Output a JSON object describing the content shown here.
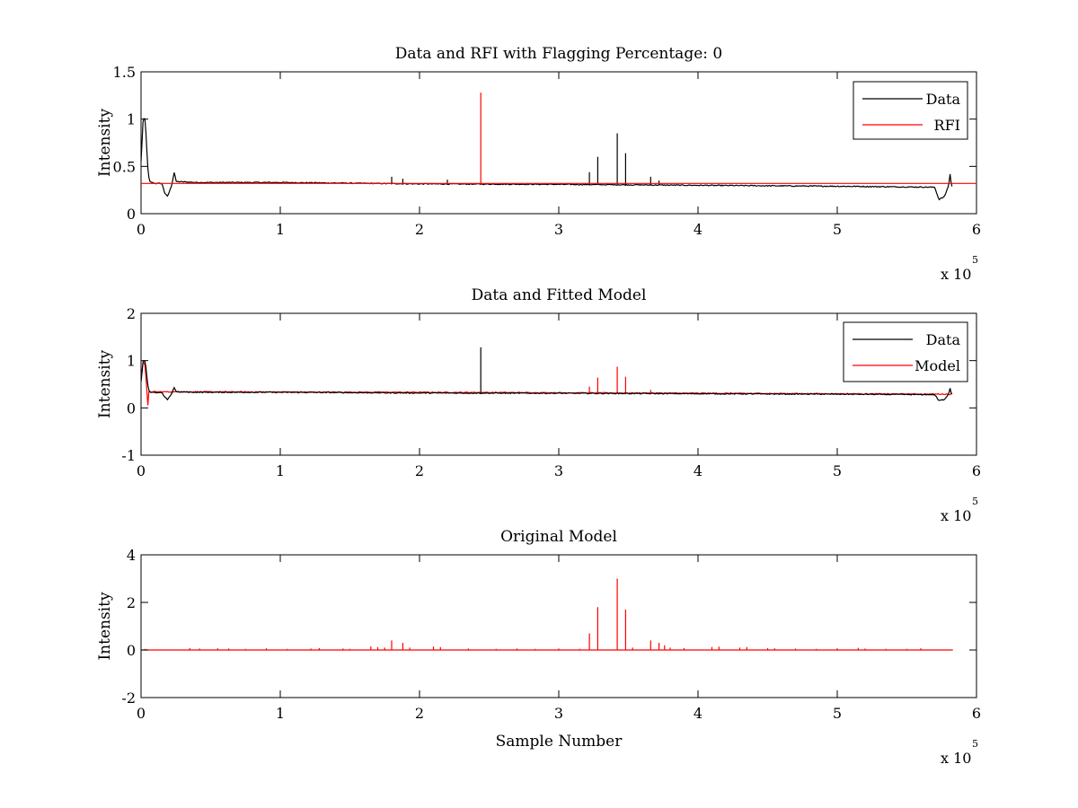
{
  "figure": {
    "background": "#ffffff",
    "line_colors": {
      "black": "#000000",
      "red": "#ff0000"
    }
  },
  "chart_data": [
    {
      "type": "line",
      "title": "Data and RFI with Flagging Percentage: 0",
      "xlabel": "",
      "ylabel": "Intensity",
      "xlim": [
        0,
        600000
      ],
      "ylim": [
        0,
        1.5
      ],
      "xticks": [
        0,
        1,
        2,
        3,
        4,
        5,
        6
      ],
      "xtick_scale": 100000,
      "x_exponent_label": {
        "prefix": "x 10",
        "power": "5"
      },
      "yticks": [
        "0",
        "0.5",
        "1",
        "1.5"
      ],
      "ytick_values": [
        0,
        0.5,
        1,
        1.5
      ],
      "grid": false,
      "legend": {
        "position": "top-right",
        "entries": [
          "Data",
          "RFI"
        ]
      },
      "series": [
        {
          "name": "Data",
          "color": "#000000",
          "kind": "baseline",
          "profile": [
            [
              0,
              0.55
            ],
            [
              1500,
              1.0
            ],
            [
              3000,
              1.0
            ],
            [
              5000,
              0.45
            ],
            [
              6000,
              0.34
            ],
            [
              10000,
              0.32
            ],
            [
              15000,
              0.32
            ],
            [
              17000,
              0.22
            ],
            [
              19000,
              0.18
            ],
            [
              22000,
              0.3
            ],
            [
              24000,
              0.45
            ],
            [
              25000,
              0.34
            ],
            [
              40000,
              0.33
            ],
            [
              100000,
              0.33
            ],
            [
              200000,
              0.315
            ],
            [
              300000,
              0.31
            ],
            [
              400000,
              0.3
            ],
            [
              500000,
              0.29
            ],
            [
              570000,
              0.28
            ],
            [
              573000,
              0.15
            ],
            [
              577000,
              0.18
            ],
            [
              580000,
              0.3
            ],
            [
              581000,
              0.42
            ],
            [
              582000,
              0.3
            ],
            [
              583000,
              0.28
            ]
          ],
          "spikes": [
            [
              180000,
              0.39
            ],
            [
              188000,
              0.37
            ],
            [
              220000,
              0.36
            ],
            [
              322000,
              0.44
            ],
            [
              328000,
              0.6
            ],
            [
              342000,
              0.85
            ],
            [
              348000,
              0.64
            ],
            [
              366000,
              0.39
            ],
            [
              372000,
              0.35
            ]
          ]
        },
        {
          "name": "RFI",
          "color": "#ff0000",
          "kind": "spikes",
          "baseline": 0.32,
          "spikes": [
            [
              244000,
              1.28
            ]
          ]
        }
      ]
    },
    {
      "type": "line",
      "title": "Data and Fitted Model",
      "xlabel": "",
      "ylabel": "Intensity",
      "xlim": [
        0,
        600000
      ],
      "ylim": [
        -1,
        2
      ],
      "xticks": [
        0,
        1,
        2,
        3,
        4,
        5,
        6
      ],
      "xtick_scale": 100000,
      "x_exponent_label": {
        "prefix": "x 10",
        "power": "5"
      },
      "yticks": [
        "-1",
        "0",
        "1",
        "2"
      ],
      "ytick_values": [
        -1,
        0,
        1,
        2
      ],
      "grid": false,
      "legend": {
        "position": "top-right",
        "entries": [
          "Data",
          "Model"
        ]
      },
      "series": [
        {
          "name": "Model",
          "color": "#ff0000",
          "kind": "baseline",
          "profile": [
            [
              0,
              0.6
            ],
            [
              1500,
              1.0
            ],
            [
              3000,
              0.9
            ],
            [
              5000,
              0.0
            ],
            [
              5500,
              0.34
            ],
            [
              40000,
              0.34
            ],
            [
              200000,
              0.33
            ],
            [
              400000,
              0.31
            ],
            [
              583000,
              0.29
            ]
          ],
          "spikes": [
            [
              322000,
              0.45
            ],
            [
              328000,
              0.64
            ],
            [
              342000,
              0.87
            ],
            [
              348000,
              0.66
            ],
            [
              366000,
              0.38
            ]
          ]
        },
        {
          "name": "Data",
          "color": "#000000",
          "kind": "baseline",
          "profile": [
            [
              0,
              0.55
            ],
            [
              1500,
              1.0
            ],
            [
              3000,
              1.0
            ],
            [
              5000,
              0.45
            ],
            [
              6000,
              0.34
            ],
            [
              10000,
              0.32
            ],
            [
              15000,
              0.32
            ],
            [
              17000,
              0.22
            ],
            [
              19000,
              0.18
            ],
            [
              22000,
              0.3
            ],
            [
              24000,
              0.45
            ],
            [
              25000,
              0.34
            ],
            [
              40000,
              0.33
            ],
            [
              100000,
              0.33
            ],
            [
              200000,
              0.315
            ],
            [
              300000,
              0.31
            ],
            [
              400000,
              0.3
            ],
            [
              500000,
              0.29
            ],
            [
              570000,
              0.28
            ],
            [
              573000,
              0.15
            ],
            [
              577000,
              0.18
            ],
            [
              580000,
              0.3
            ],
            [
              581000,
              0.42
            ],
            [
              582000,
              0.3
            ],
            [
              583000,
              0.28
            ]
          ],
          "spikes": [
            [
              244000,
              1.28
            ]
          ]
        }
      ]
    },
    {
      "type": "line",
      "title": "Original Model",
      "xlabel": "Sample Number",
      "ylabel": "Intensity",
      "xlim": [
        0,
        600000
      ],
      "ylim": [
        -2,
        4
      ],
      "xticks": [
        0,
        1,
        2,
        3,
        4,
        5,
        6
      ],
      "xtick_scale": 100000,
      "x_exponent_label": {
        "prefix": "x 10",
        "power": "5"
      },
      "yticks": [
        "-2",
        "0",
        "2",
        "4"
      ],
      "ytick_values": [
        -2,
        0,
        2,
        4
      ],
      "grid": false,
      "legend": null,
      "series": [
        {
          "name": "",
          "color": "#ff0000",
          "kind": "spikes",
          "baseline": 0,
          "x_end": 583000,
          "spikes": [
            [
              3000,
              0.05
            ],
            [
              35000,
              0.08
            ],
            [
              42000,
              0.06
            ],
            [
              55000,
              0.07
            ],
            [
              63000,
              0.06
            ],
            [
              75000,
              0.05
            ],
            [
              90000,
              0.07
            ],
            [
              105000,
              0.05
            ],
            [
              122000,
              0.06
            ],
            [
              128000,
              0.08
            ],
            [
              145000,
              0.06
            ],
            [
              150000,
              0.05
            ],
            [
              165000,
              0.15
            ],
            [
              170000,
              0.12
            ],
            [
              175000,
              0.1
            ],
            [
              180000,
              0.4
            ],
            [
              188000,
              0.3
            ],
            [
              193000,
              0.1
            ],
            [
              210000,
              0.14
            ],
            [
              215000,
              0.12
            ],
            [
              235000,
              0.06
            ],
            [
              255000,
              0.05
            ],
            [
              270000,
              0.06
            ],
            [
              283000,
              0.05
            ],
            [
              300000,
              0.06
            ],
            [
              315000,
              0.05
            ],
            [
              322000,
              0.7
            ],
            [
              328000,
              1.8
            ],
            [
              342000,
              3.0
            ],
            [
              348000,
              1.7
            ],
            [
              353000,
              0.1
            ],
            [
              366000,
              0.4
            ],
            [
              372000,
              0.3
            ],
            [
              376000,
              0.2
            ],
            [
              380000,
              0.1
            ],
            [
              390000,
              0.08
            ],
            [
              410000,
              0.12
            ],
            [
              415000,
              0.14
            ],
            [
              430000,
              0.1
            ],
            [
              435000,
              0.12
            ],
            [
              450000,
              0.08
            ],
            [
              455000,
              0.07
            ],
            [
              470000,
              0.06
            ],
            [
              485000,
              0.05
            ],
            [
              500000,
              0.07
            ],
            [
              515000,
              0.09
            ],
            [
              520000,
              0.06
            ],
            [
              535000,
              0.05
            ],
            [
              550000,
              0.05
            ],
            [
              560000,
              0.07
            ]
          ]
        }
      ]
    }
  ]
}
